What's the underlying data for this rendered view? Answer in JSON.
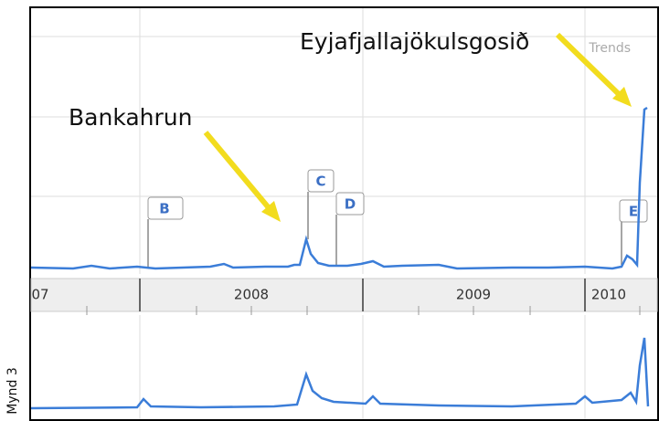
{
  "annotations": {
    "eruption": "Eyjafjallajökulsgosið",
    "crash": "Bankahrun"
  },
  "markers": [
    "B",
    "C",
    "D",
    "E"
  ],
  "axis_labels": [
    "07",
    "2008",
    "2009",
    "2010"
  ],
  "watermark": "Trends",
  "caption": "Mynd 3"
}
